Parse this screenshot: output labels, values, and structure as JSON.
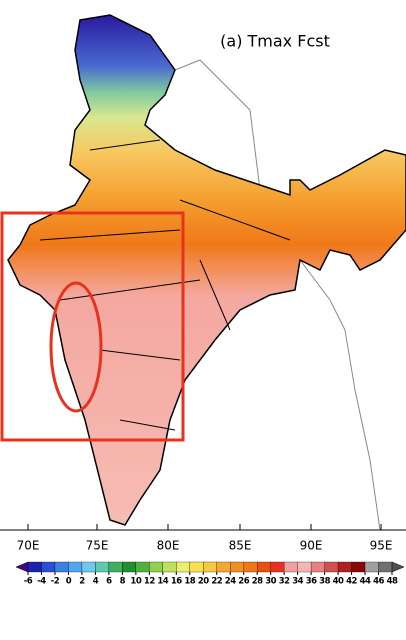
{
  "map": {
    "title": "(a) Tmax Fcst",
    "lon_labels": [
      "70E",
      "75E",
      "80E",
      "85E",
      "90E",
      "95E"
    ],
    "colorbar": {
      "ticks": [
        -6,
        -4,
        -2,
        0,
        2,
        4,
        6,
        8,
        10,
        12,
        14,
        16,
        18,
        20,
        22,
        24,
        26,
        28,
        30,
        32,
        34,
        36,
        38,
        40,
        42,
        44,
        46,
        48
      ]
    }
  }
}
